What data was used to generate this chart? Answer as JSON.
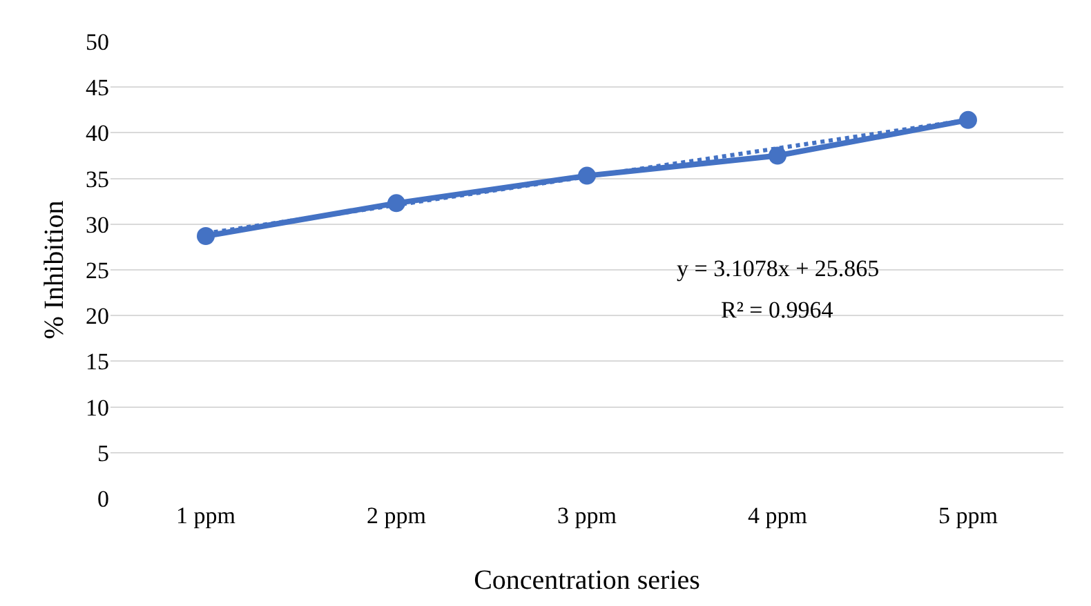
{
  "chart_data": {
    "type": "line",
    "xlabel": "Concentration series",
    "ylabel": "% Inhibition",
    "categories": [
      "1 ppm",
      "2 ppm",
      "3 ppm",
      "4 ppm",
      "5 ppm"
    ],
    "series": [
      {
        "color": "#4472c4",
        "values": [
          29.0,
          32.1,
          35.2,
          38.3,
          41.4
        ],
        "line_style": "dotted",
        "marker": "none"
      },
      {
        "color": "#4472c4",
        "values": [
          28.7,
          32.3,
          35.3,
          37.5,
          41.4
        ],
        "line_style": "solid",
        "marker": "circle"
      }
    ],
    "ylim": [
      0,
      50
    ],
    "yticks": [
      0,
      5,
      10,
      15,
      20,
      25,
      30,
      35,
      40,
      45,
      50
    ],
    "grid": "y",
    "annotations": [
      "y = 3.1078x + 25.865",
      "R² = 0.9964"
    ]
  }
}
